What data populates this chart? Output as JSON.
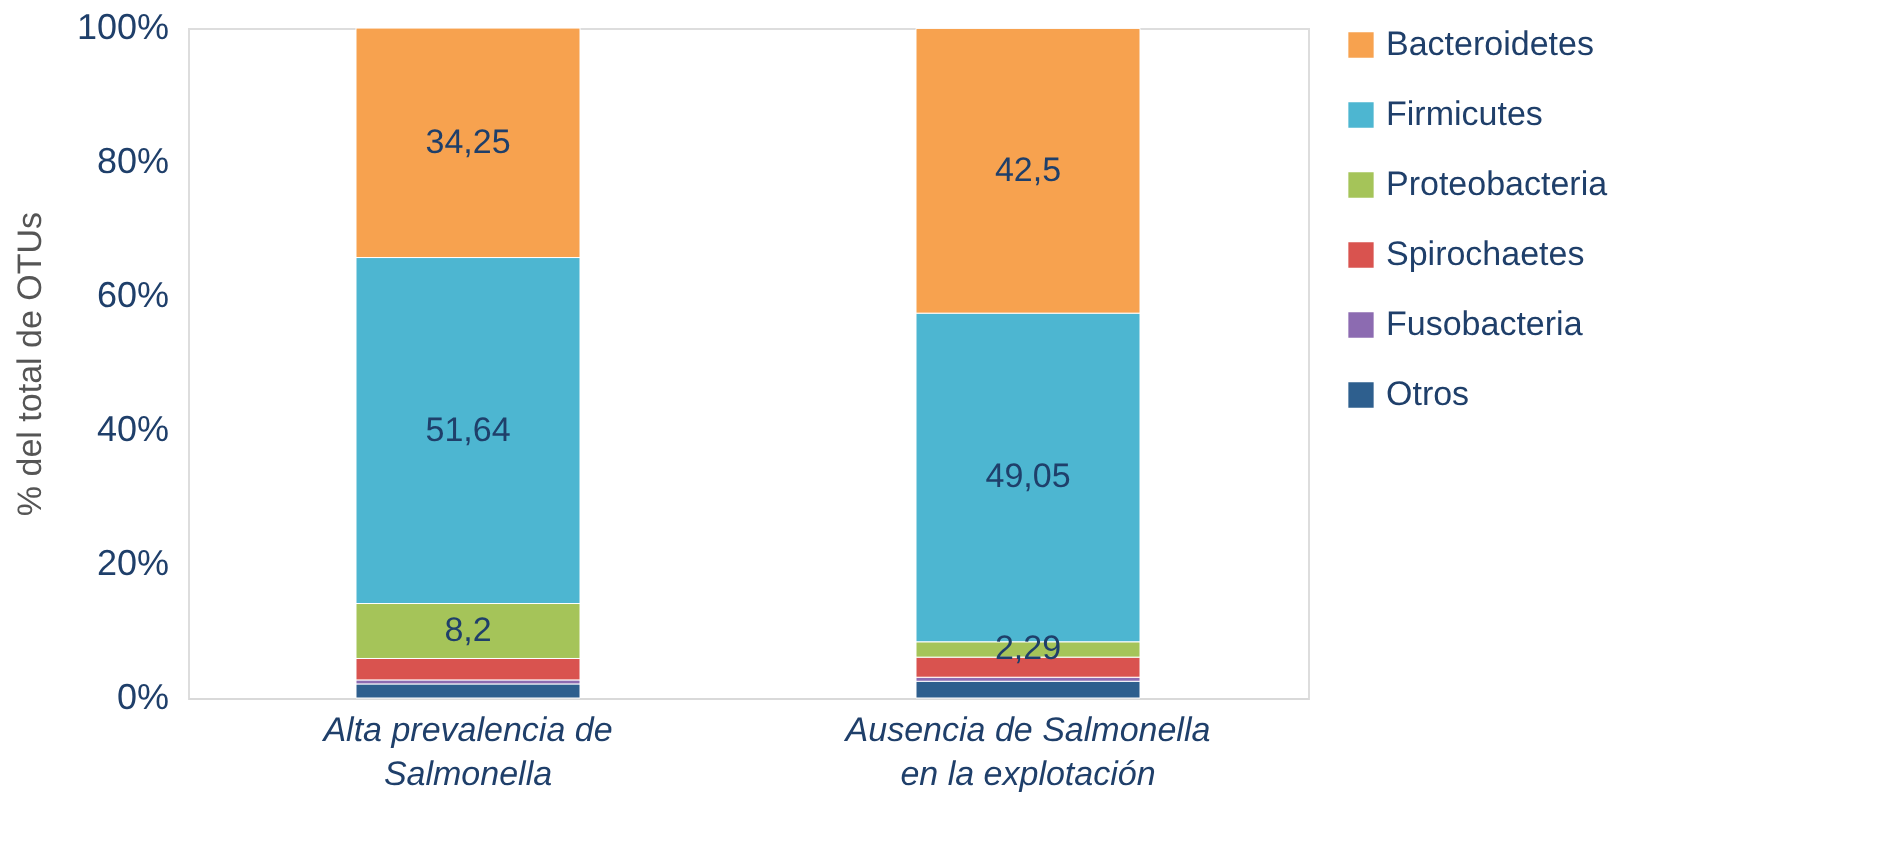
{
  "chart_data": {
    "type": "bar",
    "stacked": true,
    "ylabel": "% del total de OTUs",
    "categories": [
      "Alta prevalencia de Salmonella",
      "Ausencia de Salmonella en la explotación"
    ],
    "series": [
      {
        "name": "Otros",
        "color": "#2e5f8e",
        "values": [
          2.1,
          2.5
        ],
        "value_labels": [
          null,
          null
        ]
      },
      {
        "name": "Fusobacteria",
        "color": "#8c6bb1",
        "values": [
          0.6,
          0.6
        ],
        "value_labels": [
          null,
          null
        ]
      },
      {
        "name": "Spirochaetes",
        "color": "#d9534f",
        "values": [
          3.2,
          3.0
        ],
        "value_labels": [
          null,
          null
        ]
      },
      {
        "name": "Proteobacteria",
        "color": "#a5c459",
        "values": [
          8.2,
          2.29
        ],
        "value_labels": [
          "8,2",
          "2,29"
        ]
      },
      {
        "name": "Firmicutes",
        "color": "#4db6d1",
        "values": [
          51.64,
          49.05
        ],
        "value_labels": [
          "51,64",
          "49,05"
        ]
      },
      {
        "name": "Bacteroidetes",
        "color": "#f7a24f",
        "values": [
          34.25,
          42.5
        ],
        "value_labels": [
          "34,25",
          "42,5"
        ]
      }
    ],
    "ylim": [
      0,
      100
    ],
    "yticks": [
      {
        "value": 0,
        "label": "0%"
      },
      {
        "value": 20,
        "label": "20%"
      },
      {
        "value": 40,
        "label": "40%"
      },
      {
        "value": 60,
        "label": "60%"
      },
      {
        "value": 80,
        "label": "80%"
      },
      {
        "value": 100,
        "label": "100%"
      }
    ],
    "grid": false,
    "legend": "right"
  }
}
